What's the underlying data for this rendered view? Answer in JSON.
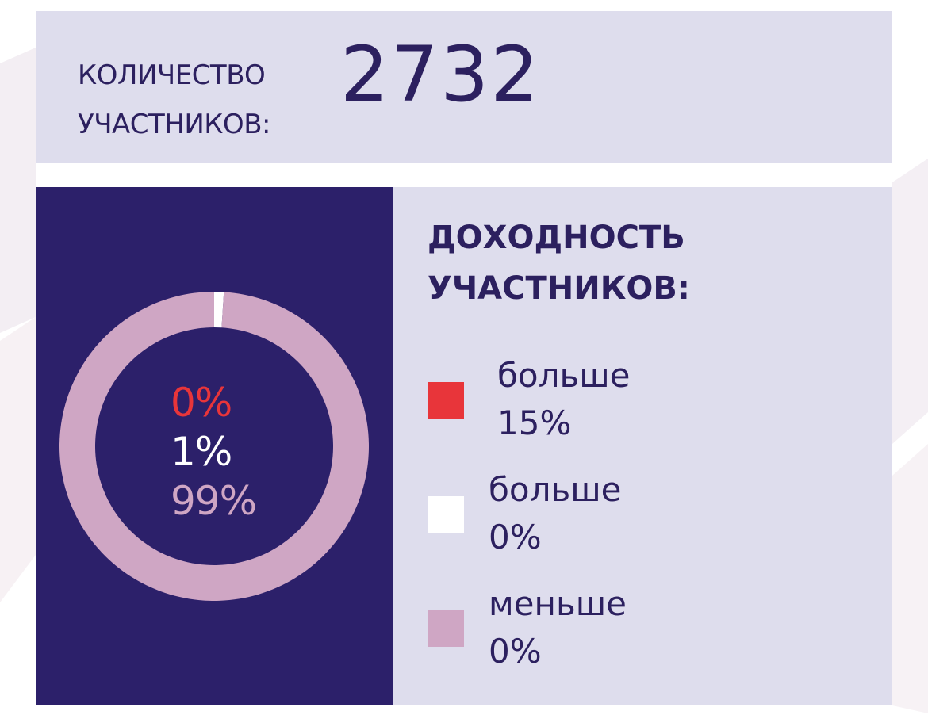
{
  "participants": {
    "label_line1": "КОЛИЧЕСТВО",
    "label_line2": "УЧАСТНИКОВ:",
    "count": "2732"
  },
  "legend": {
    "title_line1": "ДОХОДНОСТЬ",
    "title_line2": "УЧАСТНИКОВ:"
  },
  "chart_data": {
    "type": "pie",
    "title": "ДОХОДНОСТЬ УЧАСТНИКОВ:",
    "series": [
      {
        "name_line1": "больше",
        "name_line2": "15%",
        "value": 0,
        "label": "0%",
        "color": "#e8353a"
      },
      {
        "name_line1": "больше",
        "name_line2": "0%",
        "value": 1,
        "label": "1%",
        "color": "#ffffff"
      },
      {
        "name_line1": "меньше",
        "name_line2": "0%",
        "value": 99,
        "label": "99%",
        "color": "#cfa6c4"
      }
    ],
    "legend_position": "right"
  },
  "colors": {
    "panel_dark": "#2c206a",
    "panel_light": "#dedded",
    "text_dark": "#2c205f"
  }
}
